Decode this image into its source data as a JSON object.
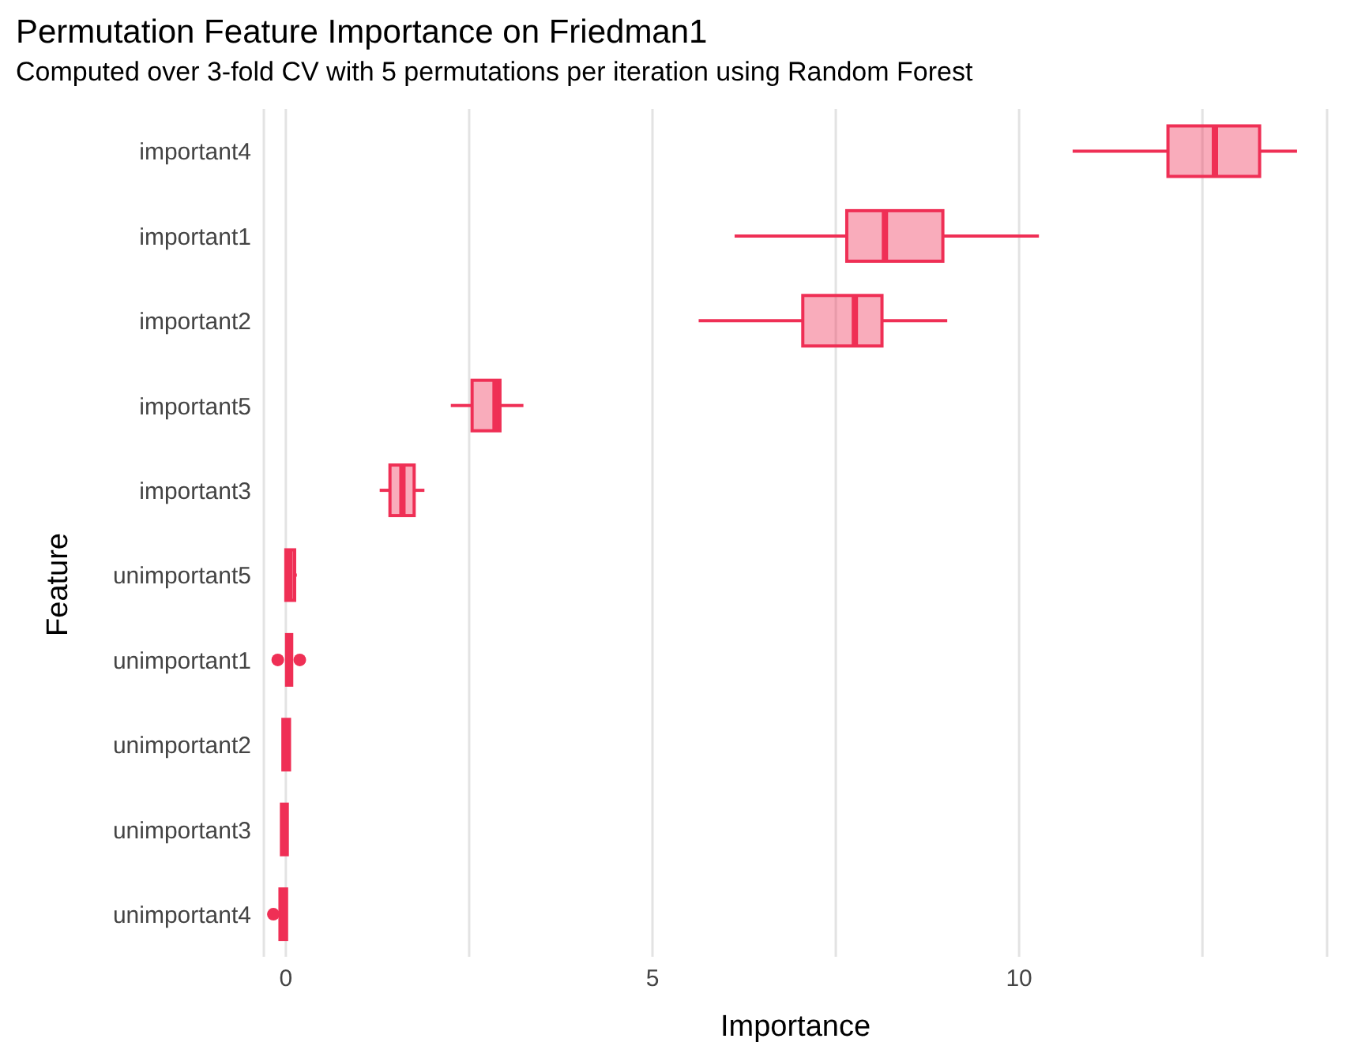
{
  "chart_data": {
    "type": "box",
    "title": "Permutation Feature Importance on Friedman1",
    "subtitle": "Computed over 3-fold CV with 5 permutations per iteration using Random Forest",
    "xlabel": "Importance",
    "ylabel": "Feature",
    "orientation": "horizontal",
    "categories": [
      "important4",
      "important1",
      "important2",
      "important5",
      "important3",
      "unimportant5",
      "unimportant1",
      "unimportant2",
      "unimportant3",
      "unimportant4"
    ],
    "color": "#ef2f55",
    "boxes": [
      {
        "low": 10.73,
        "q1": 12.03,
        "median": 12.67,
        "q3": 13.28,
        "high": 13.79
      },
      {
        "low": 6.12,
        "q1": 7.65,
        "median": 8.17,
        "q3": 8.96,
        "high": 10.27
      },
      {
        "low": 5.63,
        "q1": 7.05,
        "median": 7.76,
        "q3": 8.13,
        "high": 9.02
      },
      {
        "low": 2.25,
        "q1": 2.54,
        "median": 2.86,
        "q3": 2.92,
        "high": 3.24
      },
      {
        "low": 1.28,
        "q1": 1.42,
        "median": 1.59,
        "q3": 1.75,
        "high": 1.89
      },
      {
        "low": -0.01,
        "q1": 0,
        "median": 0.05,
        "q3": 0.12,
        "high": 0.15
      },
      {
        "low": 0,
        "q1": 0.01,
        "median": 0.04,
        "q3": 0.08,
        "high": 0.08,
        "outliers": [
          -0.11,
          0.19
        ]
      },
      {
        "low": -0.05,
        "q1": -0.04,
        "median": 0,
        "q3": 0.05,
        "high": 0.06
      },
      {
        "low": -0.07,
        "q1": -0.06,
        "median": -0.02,
        "q3": 0.02,
        "high": 0.02
      },
      {
        "low": -0.08,
        "q1": -0.08,
        "median": -0.03,
        "q3": 0.01,
        "high": 0.01,
        "outliers": [
          -0.17
        ]
      }
    ],
    "xlim": [
      -0.3,
      14.2
    ],
    "xticks": [
      0,
      {
        "value": 2.5,
        "label": null
      },
      5,
      {
        "value": 7.5,
        "label": null
      },
      10,
      {
        "value": 12.5,
        "label": null
      }
    ],
    "grid": "x",
    "legend": false
  }
}
